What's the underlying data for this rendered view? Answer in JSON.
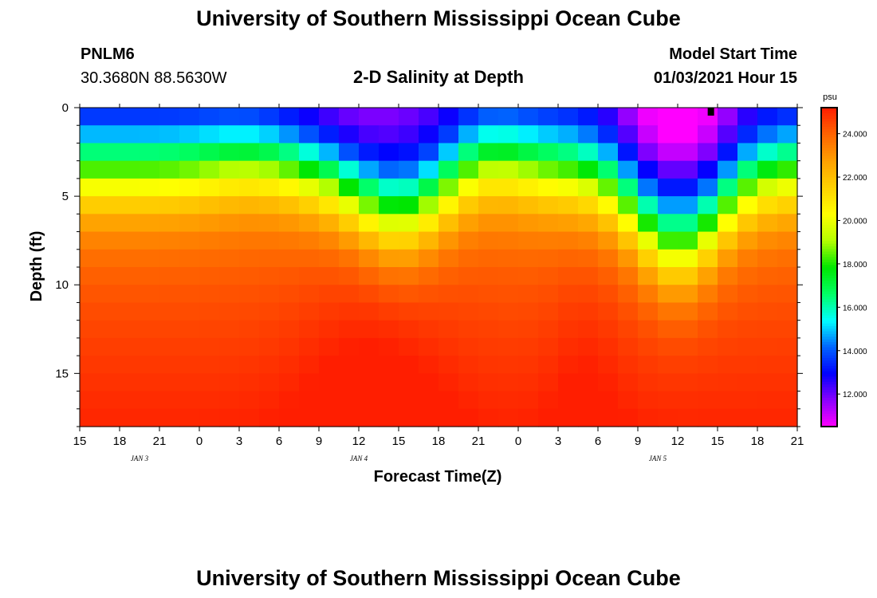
{
  "page": {
    "title_top": "University of Southern Mississippi Ocean Cube",
    "title_bottom": "University of Southern Mississippi Ocean Cube",
    "station_id": "PNLM6",
    "station_coords": "30.3680N 88.5630W",
    "model_start_label": "Model Start Time",
    "model_start_value": "01/03/2021 Hour 15"
  },
  "colors": {
    "scale": [
      "#ff00ff",
      "#8c00ff",
      "#0000ff",
      "#0064ff",
      "#00ffff",
      "#00ff64",
      "#00e600",
      "#b4ff00",
      "#ffff00",
      "#ffd200",
      "#ffa000",
      "#ff6400",
      "#ff1e00"
    ],
    "marker": "#000000"
  },
  "chart_data": {
    "type": "heatmap",
    "title": "2-D Salinity at Depth",
    "xlabel": "Forecast Time(Z)",
    "ylabel": "Depth (ft)",
    "units": "psu",
    "x_ticks": [
      "15",
      "18",
      "21",
      "0",
      "3",
      "6",
      "9",
      "12",
      "15",
      "18",
      "21",
      "0",
      "3",
      "6",
      "9",
      "12",
      "15",
      "18",
      "21"
    ],
    "x_hours_from_start": [
      0,
      3,
      6,
      9,
      12,
      15,
      18,
      21,
      24,
      27,
      30,
      33,
      36,
      39,
      42,
      45,
      48,
      51,
      54
    ],
    "x_range_hours": [
      0,
      54
    ],
    "day_labels": [
      {
        "label": "JAN 3",
        "hour": 4.5
      },
      {
        "label": "JAN 4",
        "hour": 21
      },
      {
        "label": "JAN 5",
        "hour": 43.5
      }
    ],
    "y_ticks": [
      0,
      5,
      10,
      15
    ],
    "y_range": [
      0,
      18
    ],
    "colorbar_range": [
      10.5,
      25.2
    ],
    "colorbar_ticks": [
      "12.000",
      "14.000",
      "16.000",
      "18.000",
      "20.000",
      "22.000",
      "24.000"
    ],
    "colorbar_tick_values": [
      12,
      14,
      16,
      18,
      20,
      22,
      24
    ],
    "salinity_profile_by_depth_psu": {
      "surface_0ft": 13.0,
      "halocline_5ft": 19.0,
      "mid_9ft": 22.0,
      "bottom_18ft": 24.3
    },
    "freshwater_event": {
      "center_hour": 45,
      "surface_min_psu": 10.8
    },
    "marker_hour": 47.5
  }
}
